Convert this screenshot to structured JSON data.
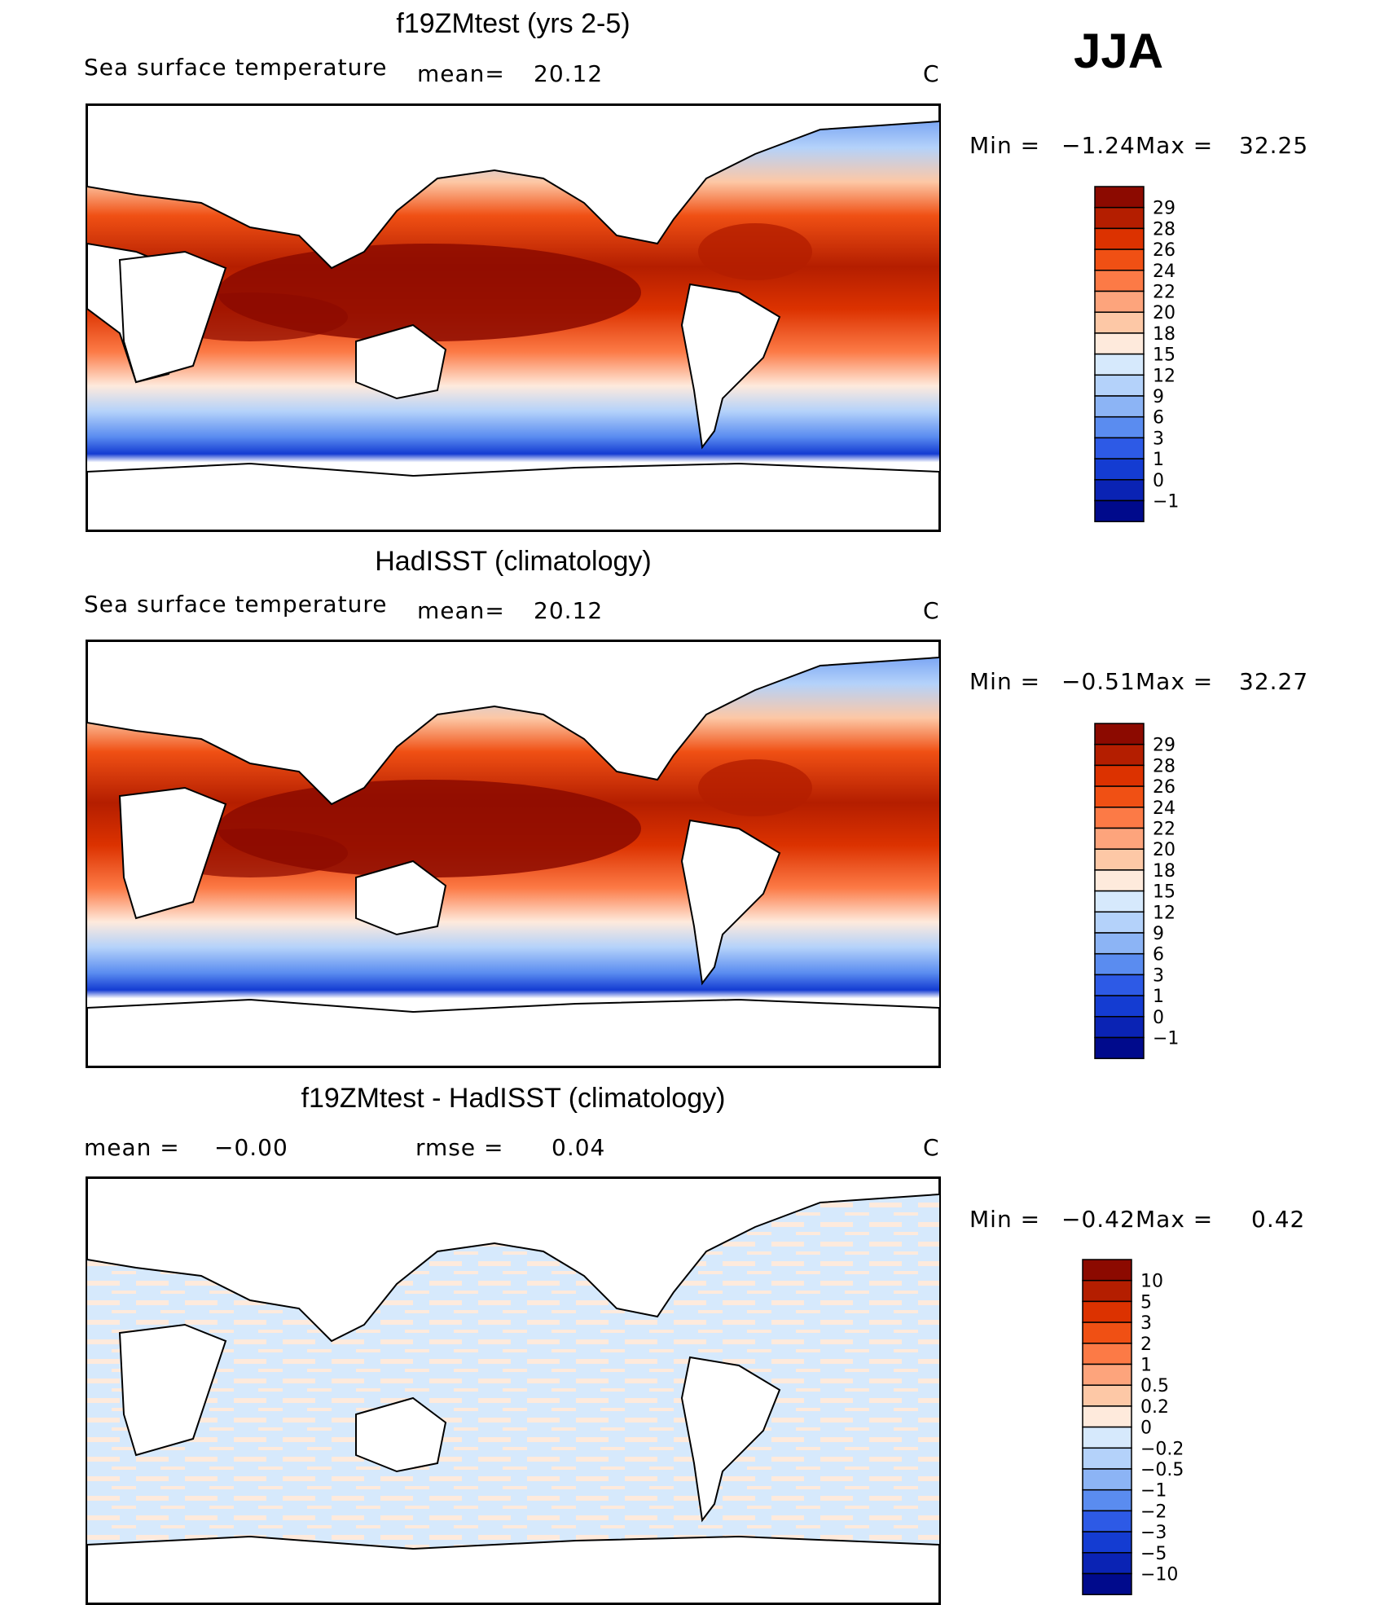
{
  "season": "JJA",
  "chart_data": [
    {
      "type": "heatmap",
      "title": "f19ZMtest (yrs 2-5)",
      "field": "Sea surface temperature",
      "stats": {
        "mean_label": "mean=",
        "mean": "20.12",
        "units": "C"
      },
      "range": {
        "min_label": "Min =",
        "min": "−1.24",
        "max_label": "Max =",
        "max": "32.25"
      },
      "colorbar": {
        "levels": [
          "29",
          "28",
          "26",
          "24",
          "22",
          "20",
          "18",
          "15",
          "12",
          "9",
          "6",
          "3",
          "1",
          "0",
          "−1"
        ],
        "colors": [
          "#8c0a00",
          "#b41e00",
          "#dc3200",
          "#f05014",
          "#fc7a46",
          "#fda47c",
          "#fdc8a6",
          "#feeadc",
          "#d6e9fc",
          "#b4d2fa",
          "#8cb4f5",
          "#5a8cf0",
          "#2d5ae6",
          "#143cd2",
          "#0a23b4",
          "#000a8c"
        ]
      }
    },
    {
      "type": "heatmap",
      "title": "HadISST (climatology)",
      "field": "Sea surface temperature",
      "stats": {
        "mean_label": "mean=",
        "mean": "20.12",
        "units": "C"
      },
      "range": {
        "min_label": "Min =",
        "min": "−0.51",
        "max_label": "Max =",
        "max": "32.27"
      },
      "colorbar": {
        "levels": [
          "29",
          "28",
          "26",
          "24",
          "22",
          "20",
          "18",
          "15",
          "12",
          "9",
          "6",
          "3",
          "1",
          "0",
          "−1"
        ],
        "colors": [
          "#8c0a00",
          "#b41e00",
          "#dc3200",
          "#f05014",
          "#fc7a46",
          "#fda47c",
          "#fdc8a6",
          "#feeadc",
          "#d6e9fc",
          "#b4d2fa",
          "#8cb4f5",
          "#5a8cf0",
          "#2d5ae6",
          "#143cd2",
          "#0a23b4",
          "#000a8c"
        ]
      }
    },
    {
      "type": "heatmap",
      "title": "f19ZMtest - HadISST (climatology)",
      "stats": {
        "mean_label": "mean =",
        "mean": "−0.00",
        "rmse_label": "rmse =",
        "rmse": "0.04",
        "units": "C"
      },
      "range": {
        "min_label": "Min =",
        "min": "−0.42",
        "max_label": "Max =",
        "max": "0.42"
      },
      "colorbar": {
        "levels": [
          "10",
          "5",
          "3",
          "2",
          "1",
          "0.5",
          "0.2",
          "0",
          "−0.2",
          "−0.5",
          "−1",
          "−2",
          "−3",
          "−5",
          "−10"
        ],
        "colors": [
          "#8c0a00",
          "#b41e00",
          "#dc3200",
          "#f05014",
          "#fc7a46",
          "#fda47c",
          "#fdc8a6",
          "#feeadc",
          "#d6e9fc",
          "#b4d2fa",
          "#8cb4f5",
          "#5a8cf0",
          "#2d5ae6",
          "#143cd2",
          "#0a23b4",
          "#000a8c"
        ]
      }
    }
  ]
}
